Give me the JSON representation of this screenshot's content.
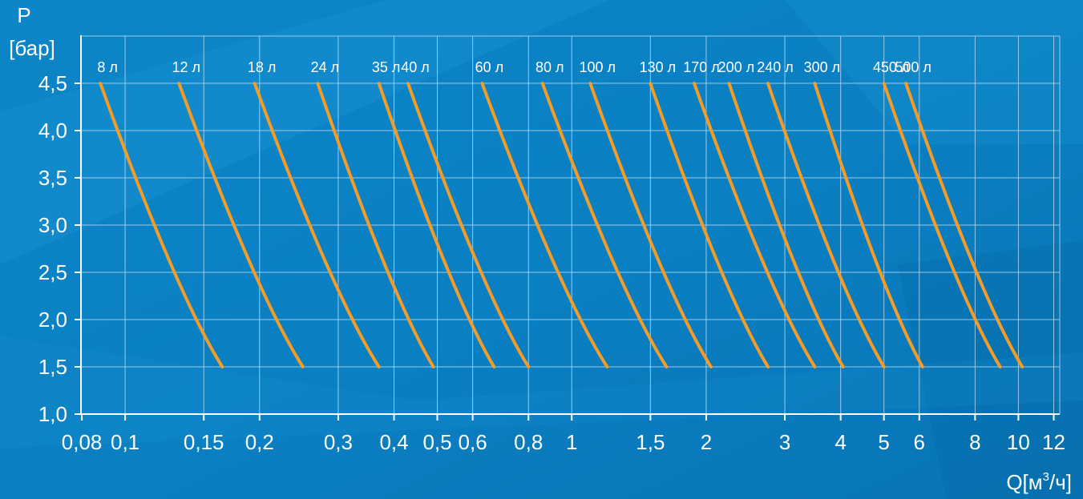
{
  "chart_data": {
    "type": "line",
    "xlabel": "Q[м³/ч]",
    "ylabel_line1": "P",
    "ylabel_line2": "[бар]",
    "x_scale": "log",
    "xlim": [
      0.08,
      12.5
    ],
    "ylim": [
      1.0,
      5.0
    ],
    "grid": true,
    "x_ticks": [
      {
        "value": 0.08,
        "label": "0,08"
      },
      {
        "value": 0.1,
        "label": "0,1"
      },
      {
        "value": 0.15,
        "label": "0,15"
      },
      {
        "value": 0.2,
        "label": "0,2"
      },
      {
        "value": 0.3,
        "label": "0,3"
      },
      {
        "value": 0.4,
        "label": "0,4"
      },
      {
        "value": 0.5,
        "label": "0,5"
      },
      {
        "value": 0.6,
        "label": "0,6"
      },
      {
        "value": 0.8,
        "label": "0,8"
      },
      {
        "value": 1,
        "label": "1"
      },
      {
        "value": 1.5,
        "label": "1,5"
      },
      {
        "value": 2,
        "label": "2"
      },
      {
        "value": 3,
        "label": "3"
      },
      {
        "value": 4,
        "label": "4"
      },
      {
        "value": 5,
        "label": "5"
      },
      {
        "value": 6,
        "label": "6"
      },
      {
        "value": 8,
        "label": "8"
      },
      {
        "value": 10,
        "label": "10"
      },
      {
        "value": 12,
        "label": "12"
      }
    ],
    "y_ticks": [
      {
        "value": 1.0,
        "label": "1,0"
      },
      {
        "value": 1.5,
        "label": "1,5"
      },
      {
        "value": 2.0,
        "label": "2,0"
      },
      {
        "value": 2.5,
        "label": "2,5"
      },
      {
        "value": 3.0,
        "label": "3,0"
      },
      {
        "value": 3.5,
        "label": "3,5"
      },
      {
        "value": 4.0,
        "label": "4,0"
      },
      {
        "value": 4.5,
        "label": "4,5"
      }
    ],
    "series": [
      {
        "name": "8 л",
        "points": [
          [
            0.088,
            4.5
          ],
          [
            0.165,
            1.5
          ]
        ]
      },
      {
        "name": "12 л",
        "points": [
          [
            0.132,
            4.5
          ],
          [
            0.25,
            1.5
          ]
        ]
      },
      {
        "name": "18 л",
        "points": [
          [
            0.195,
            4.5
          ],
          [
            0.37,
            1.5
          ]
        ]
      },
      {
        "name": "24 л",
        "points": [
          [
            0.27,
            4.5
          ],
          [
            0.49,
            1.5
          ]
        ]
      },
      {
        "name": "35 л",
        "points": [
          [
            0.37,
            4.5
          ],
          [
            0.67,
            1.5
          ]
        ]
      },
      {
        "name": "40 л",
        "points": [
          [
            0.43,
            4.5
          ],
          [
            0.8,
            1.5
          ]
        ]
      },
      {
        "name": "60 л",
        "points": [
          [
            0.63,
            4.5
          ],
          [
            1.2,
            1.5
          ]
        ]
      },
      {
        "name": "80 л",
        "points": [
          [
            0.86,
            4.5
          ],
          [
            1.63,
            1.5
          ]
        ]
      },
      {
        "name": "100 л",
        "points": [
          [
            1.1,
            4.5
          ],
          [
            2.05,
            1.5
          ]
        ]
      },
      {
        "name": "130 л",
        "points": [
          [
            1.5,
            4.5
          ],
          [
            2.75,
            1.5
          ]
        ]
      },
      {
        "name": "170 л",
        "points": [
          [
            1.88,
            4.5
          ],
          [
            3.5,
            1.5
          ]
        ]
      },
      {
        "name": "200 л",
        "points": [
          [
            2.25,
            4.5
          ],
          [
            4.05,
            1.5
          ]
        ]
      },
      {
        "name": "240 л",
        "points": [
          [
            2.75,
            4.5
          ],
          [
            5.0,
            1.5
          ]
        ]
      },
      {
        "name": "300 л",
        "points": [
          [
            3.5,
            4.5
          ],
          [
            6.1,
            1.5
          ]
        ]
      },
      {
        "name": "450 л",
        "points": [
          [
            5.0,
            4.5
          ],
          [
            9.1,
            1.5
          ]
        ]
      },
      {
        "name": "500 л",
        "points": [
          [
            5.6,
            4.5
          ],
          [
            10.2,
            1.5
          ]
        ]
      }
    ],
    "colors": {
      "background": "#0a7fc2",
      "background_light": "#1c96d6",
      "background_dark": "#066aa6",
      "grid": "#bcdcf0",
      "axis": "#ffffff",
      "curve": "#f39c28",
      "text": "#ffffff"
    }
  }
}
